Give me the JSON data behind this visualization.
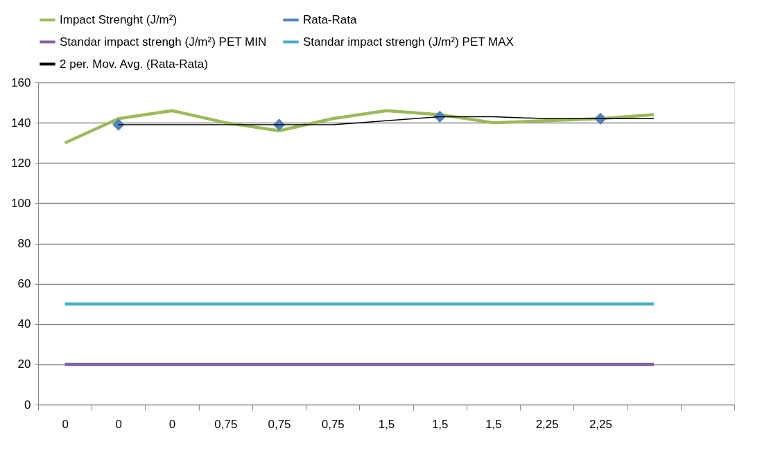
{
  "chart_data": {
    "type": "line",
    "categories": [
      "0",
      "0",
      "0",
      "0,75",
      "0,75",
      "0,75",
      "1,5",
      "1,5",
      "1,5",
      "2,25",
      "2,25",
      null,
      null
    ],
    "series": [
      {
        "name": "Impact Strenght  (J/m²)",
        "color": "#9bbb59",
        "values": [
          130,
          142,
          146,
          140,
          136,
          142,
          146,
          144,
          140,
          141,
          142,
          144,
          null
        ]
      },
      {
        "name": "Rata-Rata",
        "color": "#4f81bd",
        "type": "scatter",
        "marker": "diamond",
        "values": [
          null,
          139,
          null,
          null,
          139,
          null,
          null,
          143,
          null,
          null,
          142,
          null,
          null
        ]
      },
      {
        "name": "Standar impact strengh  (J/m²) PET MIN",
        "color": "#8064a2",
        "values": [
          20,
          20,
          20,
          20,
          20,
          20,
          20,
          20,
          20,
          20,
          20,
          20,
          null
        ]
      },
      {
        "name": "Standar impact strengh (J/m²) PET MAX",
        "color": "#4bacc6",
        "values": [
          50,
          50,
          50,
          50,
          50,
          50,
          50,
          50,
          50,
          50,
          50,
          50,
          null
        ]
      },
      {
        "name": "2 per. Mov. Avg. (Rata-Rata)",
        "color": "#000000",
        "values": [
          null,
          139,
          139,
          139,
          139,
          139,
          141,
          143,
          143,
          142,
          142,
          142,
          null
        ]
      }
    ],
    "ylim": [
      0,
      160
    ],
    "yticks": [
      0,
      20,
      40,
      60,
      80,
      100,
      120,
      140,
      160
    ],
    "grid": "y",
    "legend": "top",
    "marker": "none"
  }
}
